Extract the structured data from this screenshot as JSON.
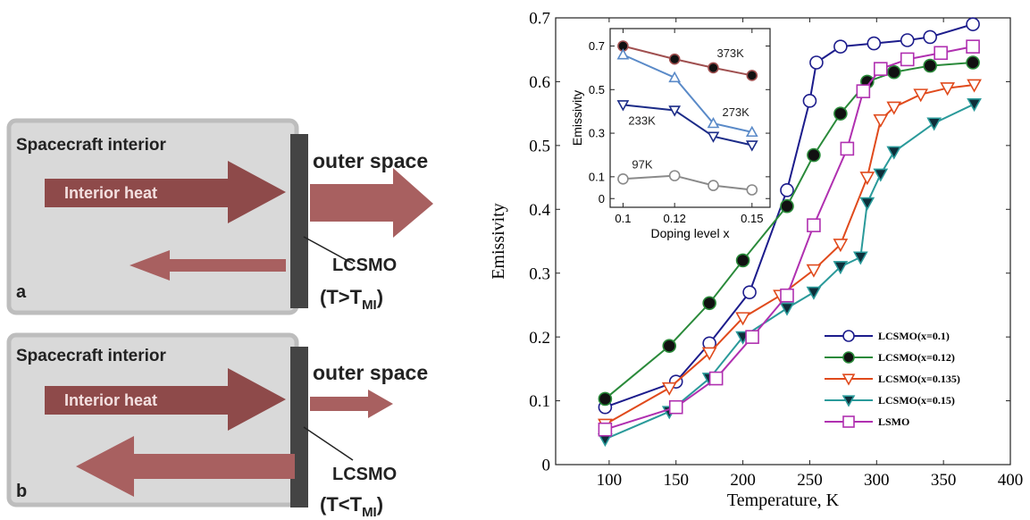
{
  "diagram": {
    "panels": [
      {
        "label": "a",
        "interior": "Spacecraft interior",
        "heat": "Interior heat",
        "outside": "outer space",
        "material": "LCSMO",
        "condition_prefix": "(T>T",
        "condition_sub": "MI",
        "condition_suffix": ")"
      },
      {
        "label": "b",
        "interior": "Spacecraft interior",
        "heat": "Interior heat",
        "outside": "outer space",
        "material": "LCSMO",
        "condition_prefix": "(T<T",
        "condition_sub": "MI",
        "condition_suffix": ")"
      }
    ]
  },
  "chart_data": [
    {
      "type": "line",
      "xlabel": "Temperature, K",
      "ylabel": "Emissivity",
      "xlim": [
        60,
        400
      ],
      "ylim": [
        0,
        0.7
      ],
      "xticks": [
        100,
        150,
        200,
        250,
        300,
        350,
        400
      ],
      "yticks": [
        0,
        0.1,
        0.2,
        0.3,
        0.4,
        0.5,
        0.6,
        0.7
      ],
      "legend": "lower right",
      "series": [
        {
          "name": "LCSMO(x=0.1)",
          "color": "#1c1c8c",
          "marker": "circle",
          "marker_fill": "#ffffff",
          "x": [
            97,
            150,
            175,
            205,
            233,
            250,
            255,
            273,
            298,
            323,
            340,
            372
          ],
          "values": [
            0.09,
            0.13,
            0.19,
            0.27,
            0.43,
            0.57,
            0.63,
            0.655,
            0.66,
            0.665,
            0.67,
            0.69
          ]
        },
        {
          "name": "LCSMO(x=0.12)",
          "color": "#2a8a3a",
          "marker": "circle",
          "marker_fill": "#111111",
          "x": [
            97,
            145,
            175,
            200,
            233,
            253,
            273,
            293,
            313,
            340,
            372
          ],
          "values": [
            0.103,
            0.186,
            0.253,
            0.32,
            0.405,
            0.485,
            0.55,
            0.6,
            0.615,
            0.625,
            0.63
          ]
        },
        {
          "name": "LCSMO(x=0.135)",
          "color": "#e04a1c",
          "marker": "triangle-down",
          "marker_fill": "#ffffff",
          "x": [
            97,
            145,
            175,
            200,
            228,
            253,
            273,
            293,
            303,
            313,
            333,
            353,
            373
          ],
          "values": [
            0.063,
            0.12,
            0.175,
            0.23,
            0.265,
            0.305,
            0.345,
            0.45,
            0.54,
            0.56,
            0.58,
            0.59,
            0.595
          ]
        },
        {
          "name": "LCSMO(x=0.15)",
          "color": "#2a9a9a",
          "marker": "triangle-down",
          "marker_fill": "#0e2e3a",
          "x": [
            97,
            145,
            175,
            200,
            233,
            253,
            273,
            288,
            293,
            303,
            313,
            343,
            373
          ],
          "values": [
            0.04,
            0.083,
            0.135,
            0.2,
            0.245,
            0.27,
            0.31,
            0.325,
            0.41,
            0.455,
            0.49,
            0.535,
            0.565
          ]
        },
        {
          "name": "LSMO",
          "color": "#b030b0",
          "marker": "square",
          "marker_fill": "#ffffff",
          "x": [
            97,
            150,
            180,
            207,
            233,
            253,
            278,
            290,
            303,
            323,
            348,
            372
          ],
          "values": [
            0.055,
            0.09,
            0.135,
            0.2,
            0.265,
            0.375,
            0.495,
            0.585,
            0.62,
            0.635,
            0.645,
            0.655
          ]
        }
      ]
    },
    {
      "type": "line",
      "xlabel": "Doping level x",
      "ylabel": "Emissivity",
      "xlim": [
        0.095,
        0.157
      ],
      "ylim": [
        -0.04,
        0.78
      ],
      "xticks": [
        0.1,
        0.12,
        0.15
      ],
      "yticks": [
        0,
        0.1,
        0.3,
        0.5,
        0.7
      ],
      "series": [
        {
          "name": "373K",
          "color": "#a05050",
          "marker": "circle",
          "marker_fill": "#111111",
          "x": [
            0.1,
            0.12,
            0.135,
            0.15
          ],
          "values": [
            0.7,
            0.64,
            0.6,
            0.565
          ]
        },
        {
          "name": "273K",
          "color": "#5a8ac8",
          "marker": "triangle-up",
          "marker_fill": "#ffffff",
          "x": [
            0.1,
            0.12,
            0.135,
            0.15
          ],
          "values": [
            0.66,
            0.555,
            0.345,
            0.305
          ]
        },
        {
          "name": "233K",
          "color": "#1c2c88",
          "marker": "triangle-down",
          "marker_fill": "#ffffff",
          "x": [
            0.1,
            0.12,
            0.135,
            0.15
          ],
          "values": [
            0.43,
            0.405,
            0.285,
            0.245
          ]
        },
        {
          "name": "97K",
          "color": "#8a8a8a",
          "marker": "circle",
          "marker_fill": "#ffffff",
          "x": [
            0.1,
            0.12,
            0.135,
            0.15
          ],
          "values": [
            0.09,
            0.105,
            0.06,
            0.04
          ]
        }
      ]
    }
  ]
}
